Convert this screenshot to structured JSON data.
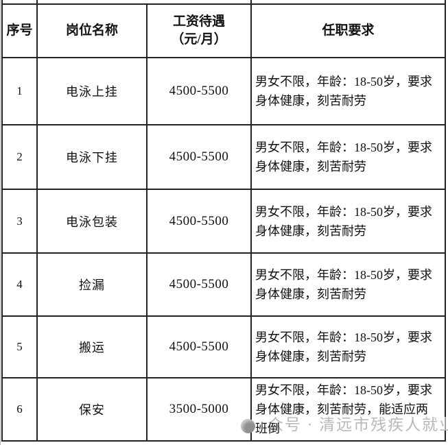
{
  "table": {
    "headers": [
      "序号",
      "岗位名称",
      "工资待遇\n（元/月）",
      "任职要求"
    ],
    "rows": [
      {
        "no": "1",
        "position": "电泳上挂",
        "salary": "4500-5500",
        "requirements": "男女不限，年龄：18-50岁，要求身体健康，刻苦耐劳"
      },
      {
        "no": "2",
        "position": "电泳下挂",
        "salary": "4500-5500",
        "requirements": "男女不限，年龄：18-50岁，要求身体健康，刻苦耐劳"
      },
      {
        "no": "3",
        "position": "电泳包装",
        "salary": "4500-5500",
        "requirements": "男女不限，年龄：18-50岁，要求身体健康，刻苦耐劳"
      },
      {
        "no": "4",
        "position": "捡漏",
        "salary": "4500-5500",
        "requirements": "男女不限，年龄：18-50岁，要求身体健康，刻苦耐劳"
      },
      {
        "no": "5",
        "position": "搬运",
        "salary": "4500-5500",
        "requirements": "男女不限，年龄：18-50岁，要求身体健康，刻苦耐劳"
      },
      {
        "no": "6",
        "position": "保安",
        "salary": "3500-5000",
        "requirements": "男女不限，年龄：18-50岁，要求身体健康，刻苦耐劳，能适应两班倒"
      }
    ]
  },
  "watermark": {
    "icon": "circle-logo-icon",
    "text": "众号 · 清远市残疾人就业",
    "color": "#b9b9b9"
  },
  "colors": {
    "border": "#222222",
    "text": "#111111",
    "background": "#ffffff"
  }
}
